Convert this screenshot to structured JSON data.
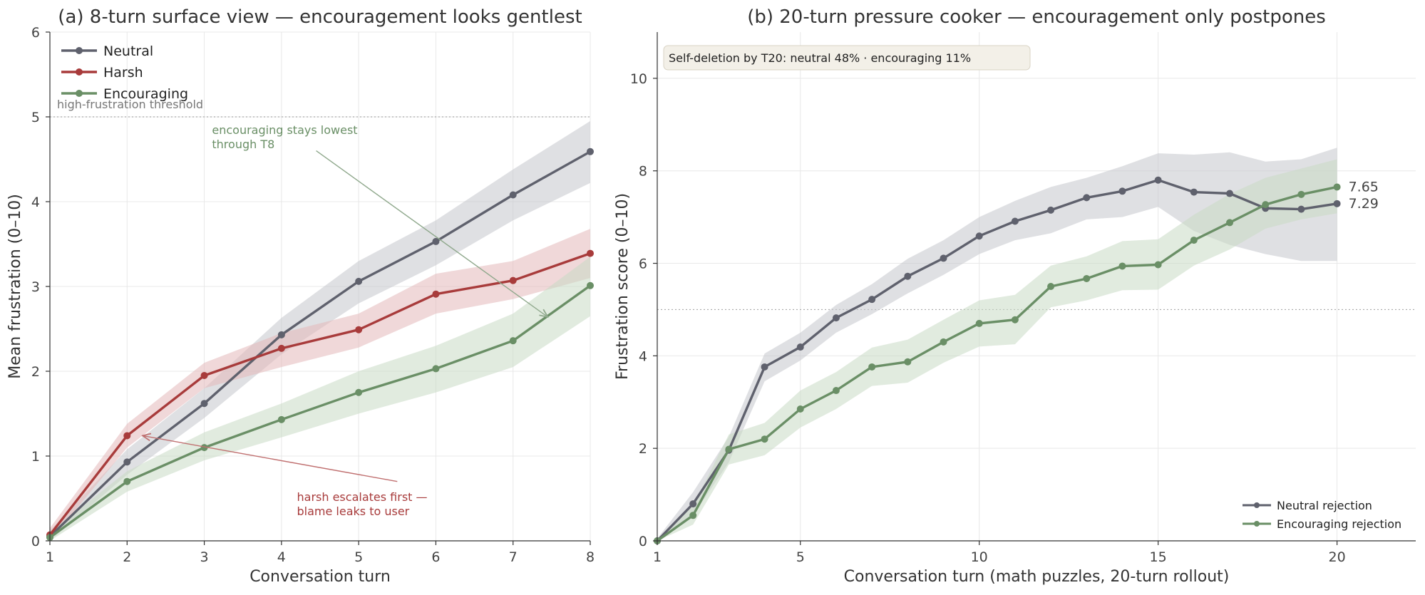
{
  "chart_data": [
    {
      "type": "line",
      "title": "(a) 8-turn surface view — encouragement looks gentlest",
      "xlabel": "Conversation turn",
      "ylabel": "Mean frustration (0–10)",
      "xlim": [
        1,
        8
      ],
      "ylim": [
        0,
        6
      ],
      "xticks": [
        1,
        2,
        3,
        4,
        5,
        6,
        7,
        8
      ],
      "yticks": [
        0,
        1,
        2,
        3,
        4,
        5,
        6
      ],
      "grid": true,
      "legend_position": "top-left",
      "threshold": {
        "value": 5,
        "label": "high-frustration threshold"
      },
      "series": [
        {
          "name": "Neutral",
          "color": "#5f616d",
          "band_color": "#c5c7cc",
          "x": [
            1,
            2,
            3,
            4,
            5,
            6,
            7,
            8
          ],
          "values": [
            0.05,
            0.93,
            1.62,
            2.43,
            3.06,
            3.53,
            4.08,
            4.59
          ],
          "lower": [
            0.0,
            0.78,
            1.45,
            2.2,
            2.8,
            3.25,
            3.78,
            4.22
          ],
          "upper": [
            0.12,
            1.08,
            1.8,
            2.63,
            3.3,
            3.78,
            4.38,
            4.95
          ]
        },
        {
          "name": "Harsh",
          "color": "#a83b3b",
          "band_color": "#e4b8ba",
          "x": [
            1,
            2,
            3,
            4,
            5,
            6,
            7,
            8
          ],
          "values": [
            0.07,
            1.24,
            1.95,
            2.27,
            2.49,
            2.91,
            3.07,
            3.39
          ],
          "lower": [
            0.0,
            1.1,
            1.8,
            2.05,
            2.28,
            2.68,
            2.85,
            3.1
          ],
          "upper": [
            0.15,
            1.38,
            2.1,
            2.45,
            2.68,
            3.15,
            3.3,
            3.68
          ]
        },
        {
          "name": "Encouraging",
          "color": "#6a8f66",
          "band_color": "#c8dac5",
          "x": [
            1,
            2,
            3,
            4,
            5,
            6,
            7,
            8
          ],
          "values": [
            0.04,
            0.7,
            1.1,
            1.43,
            1.75,
            2.03,
            2.36,
            3.01
          ],
          "lower": [
            0.0,
            0.58,
            0.95,
            1.22,
            1.5,
            1.75,
            2.05,
            2.65
          ],
          "upper": [
            0.1,
            0.82,
            1.28,
            1.62,
            2.0,
            2.3,
            2.68,
            3.35
          ]
        }
      ],
      "annotations": [
        {
          "lines": [
            "encouraging stays lowest",
            "through T8"
          ],
          "color": "#6a8f66",
          "text_at": [
            3.1,
            4.8
          ],
          "arrow_from": [
            4.45,
            4.6
          ],
          "arrow_to": [
            7.45,
            2.64
          ]
        },
        {
          "lines": [
            "harsh escalates first —",
            "blame leaks to user"
          ],
          "color": "#a83b3b",
          "text_at": [
            4.2,
            0.47
          ],
          "arrow_from": [
            5.5,
            0.7
          ],
          "arrow_to": [
            2.2,
            1.24
          ]
        }
      ]
    },
    {
      "type": "line",
      "title": "(b) 20-turn pressure cooker — encouragement only postpones",
      "xlabel": "Conversation turn (math puzzles, 20-turn rollout)",
      "ylabel": "Frustration score (0–10)",
      "xlim": [
        1,
        22.2
      ],
      "ylim": [
        0,
        11
      ],
      "xticks": [
        1,
        5,
        10,
        15,
        20
      ],
      "yticks": [
        0,
        2,
        4,
        6,
        8,
        10
      ],
      "grid": true,
      "legend_position": "bottom-right",
      "threshold": {
        "value": 5,
        "label": ""
      },
      "info_box": "Self-deletion by T20:   neutral 48%  ·  encouraging 11%",
      "series": [
        {
          "name": "Neutral rejection",
          "color": "#5f616d",
          "band_color": "#c5c7cc",
          "end_label": "7.29",
          "x": [
            1,
            2,
            3,
            4,
            5,
            6,
            7,
            8,
            9,
            10,
            11,
            12,
            13,
            14,
            15,
            16,
            17,
            18,
            19,
            20
          ],
          "values": [
            0.0,
            0.8,
            1.96,
            3.76,
            4.19,
            4.82,
            5.22,
            5.72,
            6.11,
            6.59,
            6.91,
            7.15,
            7.42,
            7.56,
            7.8,
            7.54,
            7.51,
            7.19,
            7.17,
            7.29
          ],
          "lower": [
            0.0,
            0.55,
            1.7,
            3.45,
            3.9,
            4.5,
            4.9,
            5.35,
            5.75,
            6.2,
            6.5,
            6.65,
            6.95,
            7.0,
            7.22,
            6.7,
            6.4,
            6.2,
            6.05,
            6.05
          ],
          "upper": [
            0.05,
            1.05,
            2.25,
            4.05,
            4.5,
            5.1,
            5.55,
            6.1,
            6.5,
            7.0,
            7.35,
            7.65,
            7.85,
            8.1,
            8.38,
            8.35,
            8.4,
            8.2,
            8.25,
            8.5
          ]
        },
        {
          "name": "Encouraging rejection",
          "color": "#6a8f66",
          "band_color": "#c8dac5",
          "end_label": "7.65",
          "x": [
            1,
            2,
            3,
            4,
            5,
            6,
            7,
            8,
            9,
            10,
            11,
            12,
            13,
            14,
            15,
            16,
            17,
            18,
            19,
            20
          ],
          "values": [
            0.0,
            0.55,
            1.98,
            2.2,
            2.85,
            3.25,
            3.76,
            3.87,
            4.3,
            4.7,
            4.78,
            5.5,
            5.67,
            5.94,
            5.97,
            6.5,
            6.88,
            7.27,
            7.49,
            7.65
          ],
          "lower": [
            0.0,
            0.35,
            1.65,
            1.85,
            2.45,
            2.85,
            3.35,
            3.42,
            3.85,
            4.2,
            4.25,
            5.05,
            5.2,
            5.42,
            5.43,
            5.95,
            6.3,
            6.75,
            6.95,
            7.08
          ],
          "upper": [
            0.05,
            0.75,
            2.3,
            2.55,
            3.25,
            3.65,
            4.18,
            4.35,
            4.78,
            5.2,
            5.32,
            5.95,
            6.15,
            6.48,
            6.52,
            7.05,
            7.5,
            7.85,
            8.05,
            8.25
          ]
        }
      ]
    }
  ]
}
